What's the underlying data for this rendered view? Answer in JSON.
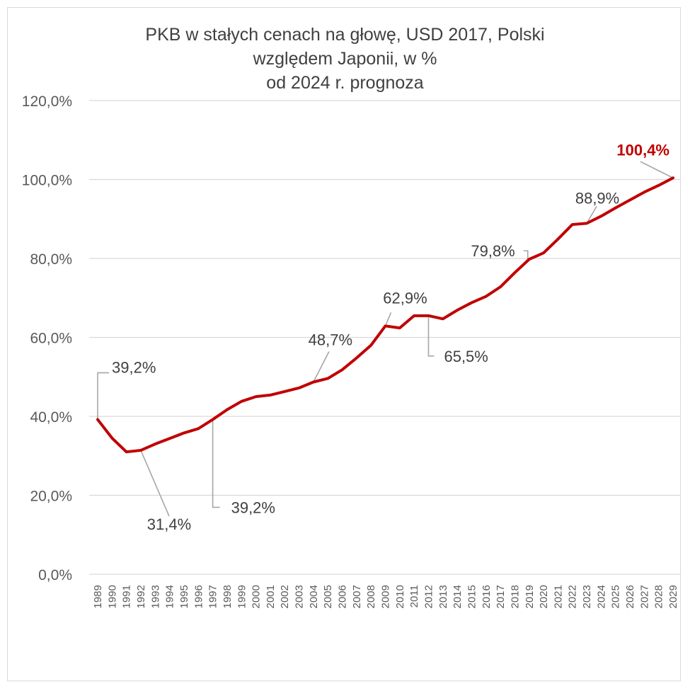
{
  "colors": {
    "line": "#c00000",
    "grid": "#d9d9d9",
    "leader": "#a6a6a6",
    "text": "#404040"
  },
  "chart_data": {
    "type": "line",
    "title_lines": [
      "PKB w stałych cenach na głowę, USD 2017, Polski",
      "względem Japonii, w %",
      "od 2024 r. prognoza"
    ],
    "xlabel": "",
    "ylabel": "",
    "ylim": [
      0,
      120
    ],
    "y_tick_labels": [
      "0,0%",
      "20,0%",
      "40,0%",
      "60,0%",
      "80,0%",
      "100,0%",
      "120,0%"
    ],
    "grid": true,
    "legend": "none",
    "categories": [
      "1989",
      "1990",
      "1991",
      "1992",
      "1993",
      "1994",
      "1995",
      "1996",
      "1997",
      "1998",
      "1999",
      "2000",
      "2001",
      "2002",
      "2003",
      "2004",
      "2005",
      "2006",
      "2007",
      "2008",
      "2009",
      "2010",
      "2011",
      "2012",
      "2013",
      "2014",
      "2015",
      "2016",
      "2017",
      "2018",
      "2019",
      "2020",
      "2021",
      "2022",
      "2023",
      "2024",
      "2025",
      "2026",
      "2027",
      "2028",
      "2029"
    ],
    "series": [
      {
        "values": [
          39.2,
          34.5,
          31.0,
          31.4,
          33.0,
          34.4,
          35.8,
          36.9,
          39.2,
          41.7,
          43.8,
          45.0,
          45.4,
          46.3,
          47.2,
          48.7,
          49.6,
          51.8,
          54.8,
          58.0,
          62.9,
          62.4,
          65.5,
          65.5,
          64.7,
          66.9,
          68.8,
          70.4,
          72.8,
          76.4,
          79.8,
          81.4,
          84.9,
          88.6,
          88.9,
          90.7,
          92.8,
          94.8,
          96.8,
          98.5,
          100.4
        ]
      }
    ],
    "annotations": [
      {
        "year": "1989",
        "text": "39,2%",
        "highlight": false
      },
      {
        "year": "1992",
        "text": "31,4%",
        "highlight": false
      },
      {
        "year": "1997",
        "text": "39,2%",
        "highlight": false
      },
      {
        "year": "2004",
        "text": "48,7%",
        "highlight": false
      },
      {
        "year": "2009",
        "text": "62,9%",
        "highlight": false
      },
      {
        "year": "2012",
        "text": "65,5%",
        "highlight": false
      },
      {
        "year": "2019",
        "text": "79,8%",
        "highlight": false
      },
      {
        "year": "2023",
        "text": "88,9%",
        "highlight": false
      },
      {
        "year": "2029",
        "text": "100,4%",
        "highlight": true
      }
    ]
  }
}
